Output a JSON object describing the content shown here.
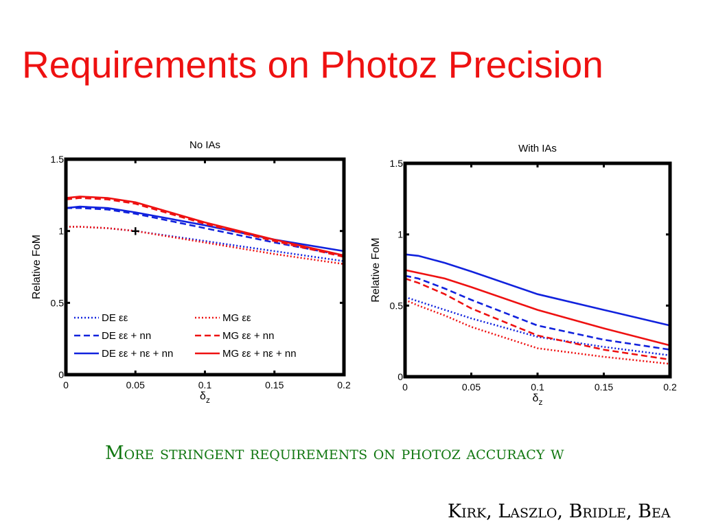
{
  "slide": {
    "title": "Requirements on Photoz Precision",
    "caption": "More stringent requirements on photoz accuracy w",
    "authors": "Kirk, Laszlo, Bridle, Bea"
  },
  "colors": {
    "title": "#ee1111",
    "caption": "#117711",
    "de": "#1122dd",
    "mg": "#ee1111"
  },
  "chart_data": [
    {
      "type": "line",
      "title": "No IAs",
      "xlabel": "δz",
      "ylabel": "Relative FoM",
      "xlim": [
        0,
        0.2
      ],
      "ylim": [
        0,
        1.5
      ],
      "xticks": [
        "0",
        "0.05",
        "0.1",
        "0.15",
        "0.2"
      ],
      "yticks": [
        "0",
        "0.5",
        "1",
        "1.5"
      ],
      "legend": "lower-left",
      "marker": {
        "x": 0.05,
        "y": 1.0,
        "symbol": "+"
      },
      "series": [
        {
          "name": "DE εε",
          "color": "#1122dd",
          "style": "dotted",
          "x": [
            0,
            0.01,
            0.03,
            0.05,
            0.1,
            0.15,
            0.2
          ],
          "y": [
            1.03,
            1.03,
            1.02,
            1.0,
            0.93,
            0.86,
            0.79
          ]
        },
        {
          "name": "DE εε + nn",
          "color": "#1122dd",
          "style": "dashed",
          "x": [
            0,
            0.01,
            0.03,
            0.05,
            0.1,
            0.15,
            0.2
          ],
          "y": [
            1.16,
            1.16,
            1.15,
            1.12,
            1.02,
            0.92,
            0.83
          ]
        },
        {
          "name": "DE εε + nε + nn",
          "color": "#1122dd",
          "style": "solid",
          "x": [
            0,
            0.01,
            0.03,
            0.05,
            0.1,
            0.15,
            0.2
          ],
          "y": [
            1.16,
            1.17,
            1.16,
            1.13,
            1.04,
            0.94,
            0.86
          ]
        },
        {
          "name": "MG εε",
          "color": "#ee1111",
          "style": "dotted",
          "x": [
            0,
            0.01,
            0.03,
            0.05,
            0.1,
            0.15,
            0.2
          ],
          "y": [
            1.03,
            1.03,
            1.02,
            1.0,
            0.92,
            0.84,
            0.77
          ]
        },
        {
          "name": "MG εε + nn",
          "color": "#ee1111",
          "style": "dashed",
          "x": [
            0,
            0.01,
            0.03,
            0.05,
            0.1,
            0.15,
            0.2
          ],
          "y": [
            1.22,
            1.23,
            1.22,
            1.19,
            1.05,
            0.93,
            0.82
          ]
        },
        {
          "name": "MG εε + nε + nn",
          "color": "#ee1111",
          "style": "solid",
          "x": [
            0,
            0.01,
            0.03,
            0.05,
            0.1,
            0.15,
            0.2
          ],
          "y": [
            1.23,
            1.24,
            1.23,
            1.2,
            1.06,
            0.94,
            0.83
          ]
        }
      ]
    },
    {
      "type": "line",
      "title": "With IAs",
      "xlabel": "δz",
      "ylabel": "Relative FoM",
      "xlim": [
        0,
        0.2
      ],
      "ylim": [
        0,
        1.5
      ],
      "xticks": [
        "0",
        "0.05",
        "0.1",
        "0.15",
        "0.2"
      ],
      "yticks": [
        "0",
        "0.5",
        "1",
        "1.5"
      ],
      "series": [
        {
          "name": "DE εε",
          "color": "#1122dd",
          "style": "dotted",
          "x": [
            0,
            0.01,
            0.03,
            0.05,
            0.1,
            0.15,
            0.2
          ],
          "y": [
            0.56,
            0.53,
            0.47,
            0.41,
            0.28,
            0.21,
            0.15
          ]
        },
        {
          "name": "DE εε + nn",
          "color": "#1122dd",
          "style": "dashed",
          "x": [
            0,
            0.01,
            0.03,
            0.05,
            0.1,
            0.15,
            0.2
          ],
          "y": [
            0.71,
            0.69,
            0.62,
            0.54,
            0.36,
            0.26,
            0.19
          ]
        },
        {
          "name": "DE εε + nε + nn",
          "color": "#1122dd",
          "style": "solid",
          "x": [
            0,
            0.01,
            0.03,
            0.05,
            0.1,
            0.15,
            0.2
          ],
          "y": [
            0.86,
            0.85,
            0.8,
            0.74,
            0.58,
            0.47,
            0.36
          ]
        },
        {
          "name": "MG εε",
          "color": "#ee1111",
          "style": "dotted",
          "x": [
            0,
            0.01,
            0.03,
            0.05,
            0.1,
            0.15,
            0.2
          ],
          "y": [
            0.54,
            0.5,
            0.43,
            0.35,
            0.2,
            0.14,
            0.09
          ]
        },
        {
          "name": "MG εε + nn",
          "color": "#ee1111",
          "style": "dashed",
          "x": [
            0,
            0.01,
            0.03,
            0.05,
            0.1,
            0.15,
            0.2
          ],
          "y": [
            0.69,
            0.66,
            0.58,
            0.48,
            0.29,
            0.19,
            0.12
          ]
        },
        {
          "name": "MG εε + nε + nn",
          "color": "#ee1111",
          "style": "solid",
          "x": [
            0,
            0.01,
            0.03,
            0.05,
            0.1,
            0.15,
            0.2
          ],
          "y": [
            0.75,
            0.73,
            0.69,
            0.63,
            0.47,
            0.34,
            0.22
          ]
        }
      ]
    }
  ]
}
